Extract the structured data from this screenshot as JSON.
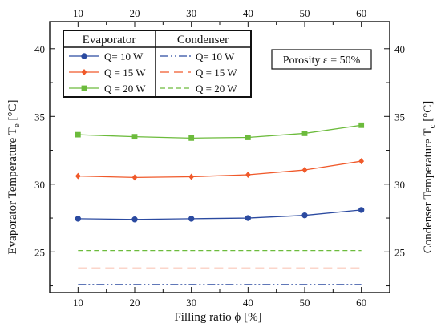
{
  "chart_data": {
    "type": "line",
    "xlabel": "Filling ratio ϕ [%]",
    "ylabel_left": "Evaporator Temperature T",
    "ylabel_left_sub": "e",
    "ylabel_left_unit": " [°C]",
    "ylabel_right": "Condenser Temperature T",
    "ylabel_right_sub": "c",
    "ylabel_right_unit": " [°C]",
    "xlim": [
      5,
      65
    ],
    "ylim": [
      22,
      42
    ],
    "x_ticks": [
      "10",
      "20",
      "30",
      "40",
      "50",
      "60"
    ],
    "y_ticks": [
      "25",
      "30",
      "35",
      "40"
    ],
    "grid": false,
    "annotation": "Porosity ε = 50%",
    "legend": {
      "placement": "top-left",
      "evaporator_header": "Evaporator",
      "condenser_header": "Condenser"
    },
    "x": [
      10,
      20,
      30,
      40,
      50,
      60
    ],
    "series": [
      {
        "group": "evaporator",
        "name": "Q= 10 W",
        "color": "#2b4aa0",
        "marker": "circle",
        "dash": "none",
        "values": [
          27.45,
          27.4,
          27.45,
          27.5,
          27.7,
          28.1
        ]
      },
      {
        "group": "evaporator",
        "name": "Q = 15 W",
        "color": "#f0592a",
        "marker": "diamond",
        "dash": "none",
        "values": [
          30.6,
          30.5,
          30.55,
          30.7,
          31.05,
          31.7
        ]
      },
      {
        "group": "evaporator",
        "name": "Q = 20 W",
        "color": "#6cbb3c",
        "marker": "square",
        "dash": "none",
        "values": [
          33.65,
          33.5,
          33.4,
          33.45,
          33.75,
          34.35
        ]
      },
      {
        "group": "condenser",
        "name": "Q= 10 W",
        "color": "#2b4aa0",
        "marker": "none",
        "dash": "10,3,2,3,2,3",
        "values": [
          22.6,
          22.6,
          22.6,
          22.6,
          22.6,
          22.6
        ]
      },
      {
        "group": "condenser",
        "name": "Q = 15 W",
        "color": "#f0592a",
        "marker": "none",
        "dash": "11,6",
        "values": [
          23.8,
          23.8,
          23.8,
          23.8,
          23.8,
          23.8
        ]
      },
      {
        "group": "condenser",
        "name": "Q = 20 W",
        "color": "#6cbb3c",
        "marker": "none",
        "dash": "6,4",
        "values": [
          25.1,
          25.1,
          25.1,
          25.1,
          25.1,
          25.1
        ]
      }
    ]
  }
}
